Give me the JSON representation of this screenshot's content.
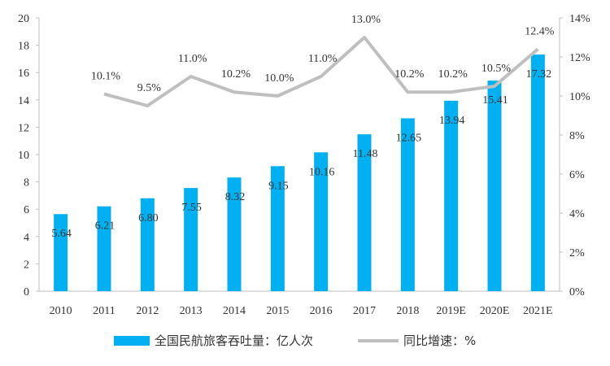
{
  "chart_data": {
    "type": "bar",
    "categories": [
      "2010",
      "2011",
      "2012",
      "2013",
      "2014",
      "2015",
      "2016",
      "2017",
      "2018",
      "2019E",
      "2020E",
      "2021E"
    ],
    "series": [
      {
        "name": "全国民航旅客吞吐量：亿人次",
        "type": "bar",
        "axis": "left",
        "color": "#00b0f0",
        "values": [
          5.64,
          6.21,
          6.8,
          7.55,
          8.32,
          9.15,
          10.16,
          11.48,
          12.65,
          13.94,
          15.41,
          17.32
        ],
        "labels": [
          "5.64",
          "6.21",
          "6.80",
          "7.55",
          "8.32",
          "9.15",
          "10.16",
          "11.48",
          "12.65",
          "13.94",
          "15.41",
          "17.32"
        ]
      },
      {
        "name": "同比增速：%",
        "type": "line",
        "axis": "right",
        "color": "#bfbfbf",
        "values": [
          null,
          10.1,
          9.5,
          11.0,
          10.2,
          10.0,
          11.0,
          13.0,
          10.2,
          10.2,
          10.5,
          12.4
        ],
        "labels": [
          "",
          "10.1%",
          "9.5%",
          "11.0%",
          "10.2%",
          "10.0%",
          "11.0%",
          "13.0%",
          "10.2%",
          "10.2%",
          "10.5%",
          "12.4%"
        ]
      }
    ],
    "y_left": {
      "min": 0,
      "max": 20,
      "step": 2,
      "ticks": [
        "0",
        "2",
        "4",
        "6",
        "8",
        "10",
        "12",
        "14",
        "16",
        "18",
        "20"
      ]
    },
    "y_right": {
      "min": 0,
      "max": 14,
      "step": 2,
      "ticks": [
        "0%",
        "2%",
        "4%",
        "6%",
        "8%",
        "10%",
        "12%",
        "14%"
      ]
    },
    "grid": false,
    "legend_position": "bottom"
  }
}
